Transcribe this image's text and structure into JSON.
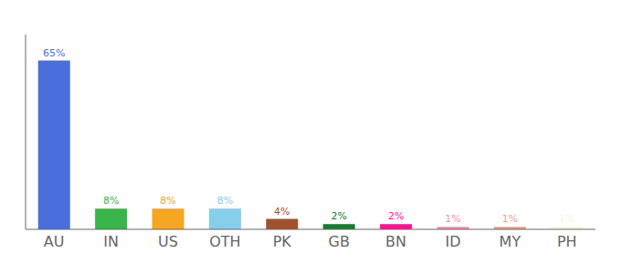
{
  "chart_data": {
    "type": "bar",
    "categories": [
      "AU",
      "IN",
      "US",
      "OTH",
      "PK",
      "GB",
      "BN",
      "ID",
      "MY",
      "PH"
    ],
    "values": [
      65,
      8,
      8,
      8,
      4,
      2,
      2,
      1,
      1,
      1
    ],
    "value_labels": [
      "65%",
      "8%",
      "8%",
      "8%",
      "4%",
      "2%",
      "2%",
      "1%",
      "1%",
      "1%"
    ],
    "colors": [
      "#4a6fdc",
      "#3ab54a",
      "#f5a623",
      "#87ceeb",
      "#a0522d",
      "#1a7a30",
      "#ff1493",
      "#f48fb1",
      "#e8a090",
      "#f5f5dc"
    ],
    "ylim": [
      0,
      75
    ],
    "data_labels": true,
    "tick_labels": "x",
    "grid": false
  }
}
